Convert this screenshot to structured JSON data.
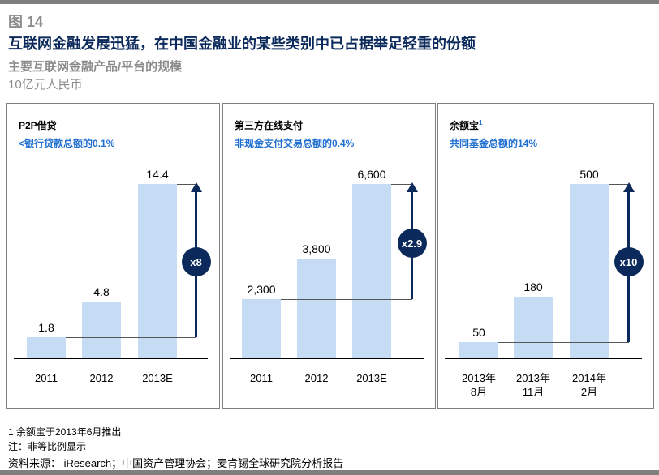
{
  "figure_label": "图 14",
  "title": "互联网金融发展迅猛，在中国金融业的某些类别中已占据举足轻重的份额",
  "subtitle": "主要互联网金融产品/平台的规模",
  "unit": "10亿元人民币",
  "chart_data": [
    {
      "type": "bar",
      "title": "P2P借贷",
      "footnote_mark": "",
      "note": "<银行贷款总额的0.1%",
      "categories": [
        "2011",
        "2012",
        "2013E"
      ],
      "values": [
        1.8,
        4.8,
        14.4
      ],
      "value_labels": [
        "1.8",
        "4.8",
        "14.4"
      ],
      "multiplier": "x8"
    },
    {
      "type": "bar",
      "title": "第三方在线支付",
      "footnote_mark": "",
      "note": "非现金支付交易总额的0.4%",
      "categories": [
        "2011",
        "2012",
        "2013E"
      ],
      "values": [
        2300,
        3800,
        6600
      ],
      "value_labels": [
        "2,300",
        "3,800",
        "6,600"
      ],
      "multiplier": "x2.9"
    },
    {
      "type": "bar",
      "title": "余额宝",
      "footnote_mark": "1",
      "note": "共同基金总额的14%",
      "categories": [
        "2013年\n8月",
        "2013年\n11月",
        "2014年\n2月"
      ],
      "values": [
        50,
        180,
        500
      ],
      "value_labels": [
        "50",
        "180",
        "500"
      ],
      "multiplier": "x10"
    }
  ],
  "footnotes": [
    "1 余额宝于2013年6月推出",
    "注：非等比例显示",
    "资料来源： iResearch；中国资产管理协会；麦肯锡全球研究院分析报告"
  ],
  "colors": {
    "bar": "#c6dcf5",
    "accent": "#0b2a5b",
    "note": "#1f6fd1"
  }
}
